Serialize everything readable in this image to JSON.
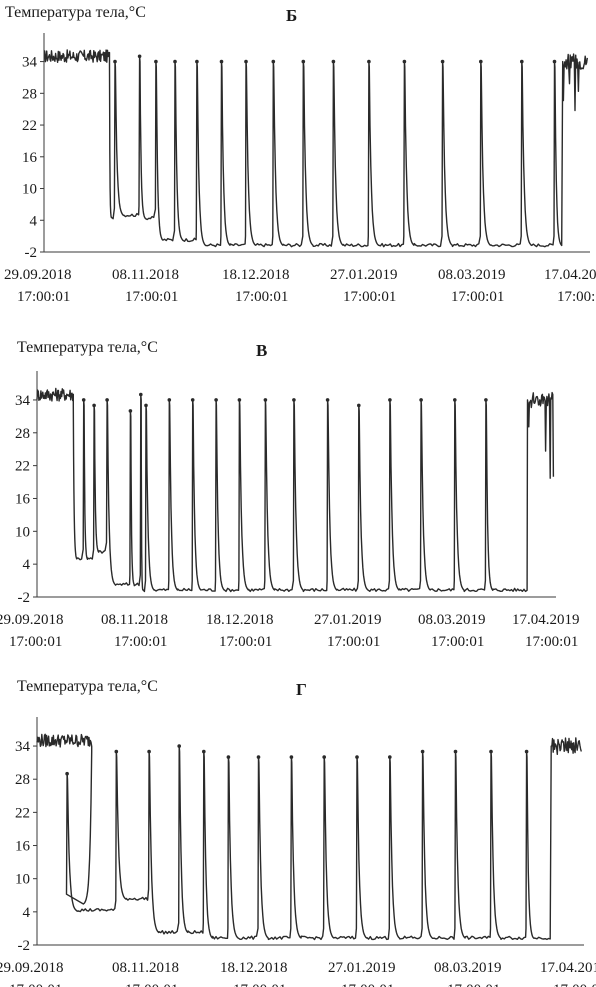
{
  "ylabel": "Температура тела,°C",
  "xticks": [
    {
      "date": "29.09.2018",
      "time": "17:00:01"
    },
    {
      "date": "08.11.2018",
      "time": "17:00:01"
    },
    {
      "date": "18.12.2018",
      "time": "17:00:01"
    },
    {
      "date": "27.01.2019",
      "time": "17:00:01"
    },
    {
      "date": "08.03.2019",
      "time": "17:00:01"
    },
    {
      "date": "17.04.2019",
      "time": "17:00:01"
    }
  ],
  "yticks": [
    34,
    28,
    22,
    16,
    10,
    4,
    -2
  ],
  "colors": {
    "trace": "#2a2a2a",
    "axis": "#3a3a3a"
  },
  "chart_data": [
    {
      "type": "line",
      "panel": "Б",
      "ylabel": "Температура тела,°C",
      "ylim": [
        -2,
        36
      ],
      "xlim": [
        "29.09.2018",
        "17.04.2019"
      ],
      "summary": {
        "active_start": "29.09.2018",
        "active_end_approx": "23.10.2018",
        "resume_approx": "07.04.2019"
      },
      "arousal_peaks": [
        {
          "date": "25.10.2018",
          "temp": 34
        },
        {
          "date": "03.11.2018",
          "temp": 35
        },
        {
          "date": "09.11.2018",
          "temp": 34
        },
        {
          "date": "16.11.2018",
          "temp": 34
        },
        {
          "date": "24.11.2018",
          "temp": 34
        },
        {
          "date": "03.12.2018",
          "temp": 34
        },
        {
          "date": "12.12.2018",
          "temp": 34
        },
        {
          "date": "22.12.2018",
          "temp": 34
        },
        {
          "date": "02.01.2019",
          "temp": 34
        },
        {
          "date": "13.01.2019",
          "temp": 34
        },
        {
          "date": "26.01.2019",
          "temp": 34
        },
        {
          "date": "08.02.2019",
          "temp": 34
        },
        {
          "date": "22.02.2019",
          "temp": 34
        },
        {
          "date": "08.03.2019",
          "temp": 34
        },
        {
          "date": "23.03.2019",
          "temp": 34
        },
        {
          "date": "04.04.2019",
          "temp": 34
        }
      ],
      "torpor_min_temp": -1
    },
    {
      "type": "line",
      "panel": "В",
      "ylabel": "Температура тела,°C",
      "ylim": [
        -2,
        36
      ],
      "xlim": [
        "29.09.2018",
        "17.04.2019"
      ],
      "summary": {
        "active_start": "29.09.2018",
        "active_end_approx": "13.10.2018",
        "resume_approx": "06.04.2019"
      },
      "arousal_peaks": [
        {
          "date": "17.10.2018",
          "temp": 34
        },
        {
          "date": "21.10.2018",
          "temp": 33
        },
        {
          "date": "26.10.2018",
          "temp": 34
        },
        {
          "date": "04.11.2018",
          "temp": 32
        },
        {
          "date": "08.11.2018",
          "temp": 35
        },
        {
          "date": "10.11.2018",
          "temp": 33
        },
        {
          "date": "19.11.2018",
          "temp": 34
        },
        {
          "date": "28.11.2018",
          "temp": 34
        },
        {
          "date": "07.12.2018",
          "temp": 34
        },
        {
          "date": "16.12.2018",
          "temp": 34
        },
        {
          "date": "26.12.2018",
          "temp": 34
        },
        {
          "date": "06.01.2019",
          "temp": 34
        },
        {
          "date": "19.01.2019",
          "temp": 34
        },
        {
          "date": "31.01.2019",
          "temp": 33
        },
        {
          "date": "12.02.2019",
          "temp": 34
        },
        {
          "date": "24.02.2019",
          "temp": 34
        },
        {
          "date": "09.03.2019",
          "temp": 34
        },
        {
          "date": "21.03.2019",
          "temp": 34
        }
      ],
      "torpor_min_temp": -1
    },
    {
      "type": "line",
      "panel": "Г",
      "ylabel": "Температура тела,°C",
      "ylim": [
        -2,
        36
      ],
      "xlim": [
        "29.09.2018",
        "17.04.2019"
      ],
      "summary": {
        "active_start": "29.09.2018",
        "active_end_approx": "19.10.2018",
        "resume_approx": "05.04.2019"
      },
      "arousal_peaks": [
        {
          "date": "10.10.2018",
          "temp": 29
        },
        {
          "date": "28.10.2018",
          "temp": 33
        },
        {
          "date": "09.11.2018",
          "temp": 33
        },
        {
          "date": "20.11.2018",
          "temp": 34
        },
        {
          "date": "29.11.2018",
          "temp": 33
        },
        {
          "date": "08.12.2018",
          "temp": 32
        },
        {
          "date": "19.12.2018",
          "temp": 32
        },
        {
          "date": "31.12.2018",
          "temp": 32
        },
        {
          "date": "12.01.2019",
          "temp": 32
        },
        {
          "date": "24.01.2019",
          "temp": 32
        },
        {
          "date": "05.02.2019",
          "temp": 32
        },
        {
          "date": "17.02.2019",
          "temp": 33
        },
        {
          "date": "01.03.2019",
          "temp": 33
        },
        {
          "date": "14.03.2019",
          "temp": 33
        },
        {
          "date": "27.03.2019",
          "temp": 33
        }
      ],
      "torpor_min_temp": -1
    }
  ],
  "panels": {
    "b": {
      "letter": "Б"
    },
    "v": {
      "letter": "В"
    },
    "g": {
      "letter": "Г"
    }
  }
}
